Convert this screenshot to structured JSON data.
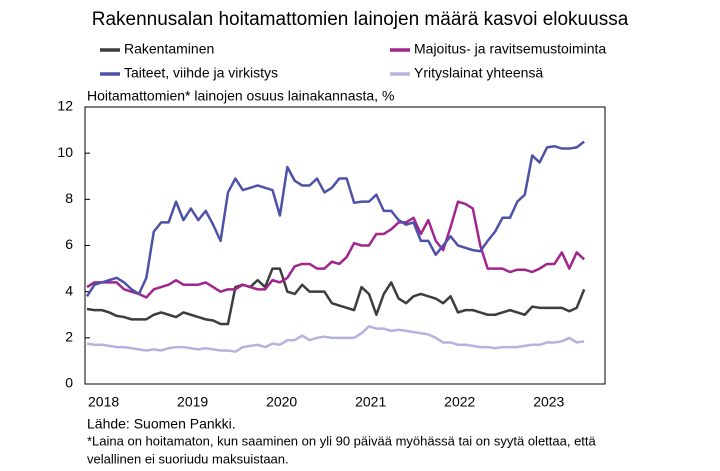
{
  "chart_data": {
    "type": "line",
    "title": "Rakennusalan hoitamattomien lainojen määrä kasvoi elokuussa",
    "y_label": "Hoitamattomien* lainojen osuus lainakannasta, %",
    "source": "Lähde: Suomen Pankki.",
    "notes": [
      "*Laina on hoitamaton, kun saaminen on yli 90 päivää myöhässä tai on syytä olettaa, että",
      "velallinen  ei suoriudu maksuistaan."
    ],
    "categories": [
      "2018",
      null,
      null,
      null,
      null,
      null,
      null,
      null,
      null,
      null,
      null,
      null,
      "2019",
      null,
      null,
      null,
      null,
      null,
      null,
      null,
      null,
      null,
      null,
      null,
      "2020",
      null,
      null,
      null,
      null,
      null,
      null,
      null,
      null,
      null,
      null,
      null,
      "2021",
      null,
      null,
      null,
      null,
      null,
      null,
      null,
      null,
      null,
      null,
      null,
      "2022",
      null,
      null,
      null,
      null,
      null,
      null,
      null,
      null,
      null,
      null,
      null,
      "2023",
      null,
      null,
      null,
      null,
      null,
      null,
      null
    ],
    "ylim": [
      0,
      12
    ],
    "yticks": [
      0,
      2,
      4,
      6,
      8,
      10,
      12
    ],
    "series": [
      {
        "name": "Rakentaminen",
        "color": "#3d3d3d",
        "values": [
          3.25,
          3.2,
          3.2,
          3.1,
          2.95,
          2.9,
          2.8,
          2.8,
          2.8,
          3.0,
          3.1,
          3.0,
          2.9,
          3.1,
          3.0,
          2.9,
          2.8,
          2.75,
          2.6,
          2.6,
          4.2,
          4.3,
          4.2,
          4.5,
          4.2,
          5.0,
          5.0,
          4.0,
          3.9,
          4.3,
          4.0,
          4.0,
          4.0,
          3.5,
          3.4,
          3.3,
          3.2,
          4.2,
          3.9,
          3.0,
          3.9,
          4.4,
          3.7,
          3.5,
          3.8,
          3.9,
          3.8,
          3.7,
          3.5,
          3.8,
          3.1,
          3.2,
          3.2,
          3.1,
          3.0,
          3.0,
          3.1,
          3.2,
          3.1,
          3.0,
          3.35,
          3.3,
          3.3,
          3.3,
          3.3,
          3.15,
          3.3,
          4.1
        ]
      },
      {
        "name": "Majoitus- ja ravitsemustoiminta",
        "color": "#a0258f",
        "values": [
          4.2,
          4.4,
          4.4,
          4.4,
          4.4,
          4.1,
          4.0,
          3.9,
          3.75,
          4.1,
          4.2,
          4.3,
          4.5,
          4.3,
          4.3,
          4.3,
          4.4,
          4.2,
          4.0,
          4.1,
          4.1,
          4.3,
          4.2,
          4.1,
          4.1,
          4.5,
          4.4,
          4.6,
          5.1,
          5.2,
          5.2,
          5.0,
          5.0,
          5.3,
          5.2,
          5.5,
          6.1,
          6.0,
          6.0,
          6.5,
          6.5,
          6.7,
          7.0,
          7.0,
          7.2,
          6.5,
          7.1,
          6.2,
          5.8,
          6.8,
          7.9,
          7.8,
          7.6,
          6.0,
          5.0,
          5.0,
          5.0,
          4.85,
          4.95,
          4.95,
          4.85,
          5.0,
          5.2,
          5.2,
          5.7,
          5.0,
          5.7,
          5.4
        ]
      },
      {
        "name": "Taiteet, viihde ja virkistys",
        "color": "#4d52a8",
        "values": [
          3.8,
          4.3,
          4.4,
          4.5,
          4.6,
          4.4,
          4.1,
          3.9,
          4.6,
          6.6,
          7.0,
          7.0,
          7.9,
          7.1,
          7.6,
          7.1,
          7.5,
          6.9,
          6.2,
          8.3,
          8.9,
          8.4,
          8.5,
          8.6,
          8.5,
          8.4,
          7.3,
          9.4,
          8.8,
          8.6,
          8.6,
          8.9,
          8.3,
          8.5,
          8.9,
          8.9,
          7.85,
          7.9,
          7.9,
          8.2,
          7.5,
          7.5,
          7.1,
          6.9,
          7.0,
          6.2,
          6.2,
          5.6,
          6.0,
          6.4,
          6.0,
          5.9,
          5.8,
          5.75,
          6.2,
          6.6,
          7.2,
          7.2,
          7.9,
          8.2,
          9.9,
          9.6,
          10.25,
          10.3,
          10.2,
          10.2,
          10.25,
          10.5
        ]
      },
      {
        "name": "Yrityslainat yhteensä",
        "color": "#b3b3e0",
        "values": [
          1.75,
          1.7,
          1.7,
          1.65,
          1.6,
          1.6,
          1.55,
          1.5,
          1.45,
          1.5,
          1.45,
          1.55,
          1.6,
          1.6,
          1.55,
          1.5,
          1.55,
          1.5,
          1.45,
          1.45,
          1.4,
          1.6,
          1.65,
          1.7,
          1.6,
          1.75,
          1.7,
          1.9,
          1.9,
          2.1,
          1.9,
          2.0,
          2.05,
          2.0,
          2.0,
          2.0,
          2.0,
          2.2,
          2.5,
          2.4,
          2.4,
          2.3,
          2.35,
          2.3,
          2.25,
          2.2,
          2.15,
          2.0,
          1.8,
          1.8,
          1.7,
          1.7,
          1.65,
          1.6,
          1.6,
          1.55,
          1.6,
          1.6,
          1.6,
          1.65,
          1.7,
          1.7,
          1.8,
          1.8,
          1.85,
          2.0,
          1.8,
          1.85
        ]
      }
    ]
  }
}
